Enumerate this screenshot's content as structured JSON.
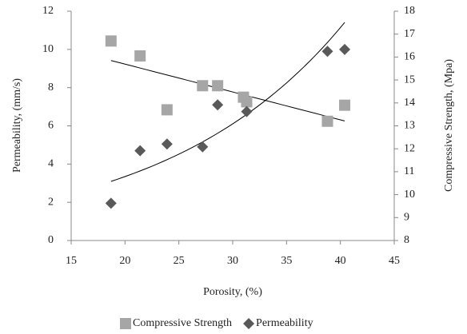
{
  "chart_data": {
    "type": "scatter",
    "x_label": "Porosity, (%)",
    "y_label": "Permeability, (mm/s)",
    "y2_label": "Compressive Strength, (Mpa)",
    "xlim": [
      15,
      45
    ],
    "xticks": [
      15,
      20,
      25,
      30,
      35,
      40,
      45
    ],
    "ylim": [
      0,
      12
    ],
    "yticks": [
      0,
      2,
      4,
      6,
      8,
      10,
      12
    ],
    "y2lim": [
      8,
      18
    ],
    "y2ticks": [
      8,
      9,
      10,
      11,
      12,
      13,
      14,
      15,
      16,
      17,
      18
    ],
    "legend": "bottom",
    "series": [
      {
        "name": "Compressive Strength",
        "color": "#a6a6a6",
        "marker": "square",
        "axis": "y2",
        "trendline": "linear",
        "x": [
          18.7,
          21.4,
          23.9,
          27.2,
          28.6,
          31.0,
          31.3,
          38.8,
          40.4
        ],
        "values": [
          16.7,
          16.05,
          13.7,
          14.75,
          14.75,
          14.25,
          14.05,
          13.2,
          13.9
        ]
      },
      {
        "name": "Permeability",
        "color": "#595959",
        "marker": "diamond",
        "axis": "y",
        "trendline": "exponential",
        "x": [
          18.7,
          21.4,
          23.9,
          27.2,
          28.6,
          31.3,
          38.8,
          40.4
        ],
        "values": [
          1.95,
          4.7,
          5.05,
          4.9,
          7.1,
          6.75,
          9.9,
          10.0
        ]
      }
    ]
  }
}
